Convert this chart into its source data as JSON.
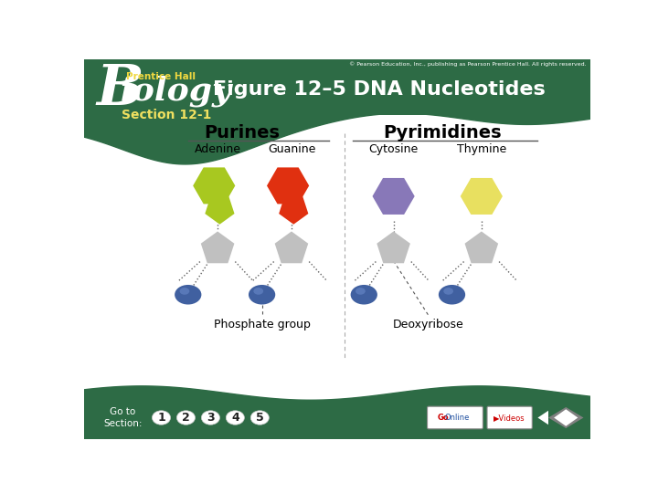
{
  "title": "Figure 12–5 DNA Nucleotides",
  "section": "Section 12-1",
  "header_bg": "#2d6b45",
  "main_bg": "#ffffff",
  "footer_bg": "#2d6b45",
  "purines_label": "Purines",
  "pyrimidines_label": "Pyrimidines",
  "adenine_label": "Adenine",
  "guanine_label": "Guanine",
  "cytosine_label": "Cytosine",
  "thymine_label": "Thymine",
  "phosphate_label": "Phosphate group",
  "deoxyribose_label": "Deoxyribose",
  "adenine_color": "#a8c820",
  "guanine_color": "#e03010",
  "cytosine_color": "#8878b8",
  "thymine_color": "#e8e060",
  "sugar_color": "#c0c0c0",
  "phosphate_color": "#4060a0",
  "line_color": "#606060",
  "title_color": "#ffffff",
  "section_color": "#f0e060",
  "label_color": "#000000",
  "copyright": "© Pearson Education, Inc., publishing as Pearson Prentice Hall. All rights reserved."
}
